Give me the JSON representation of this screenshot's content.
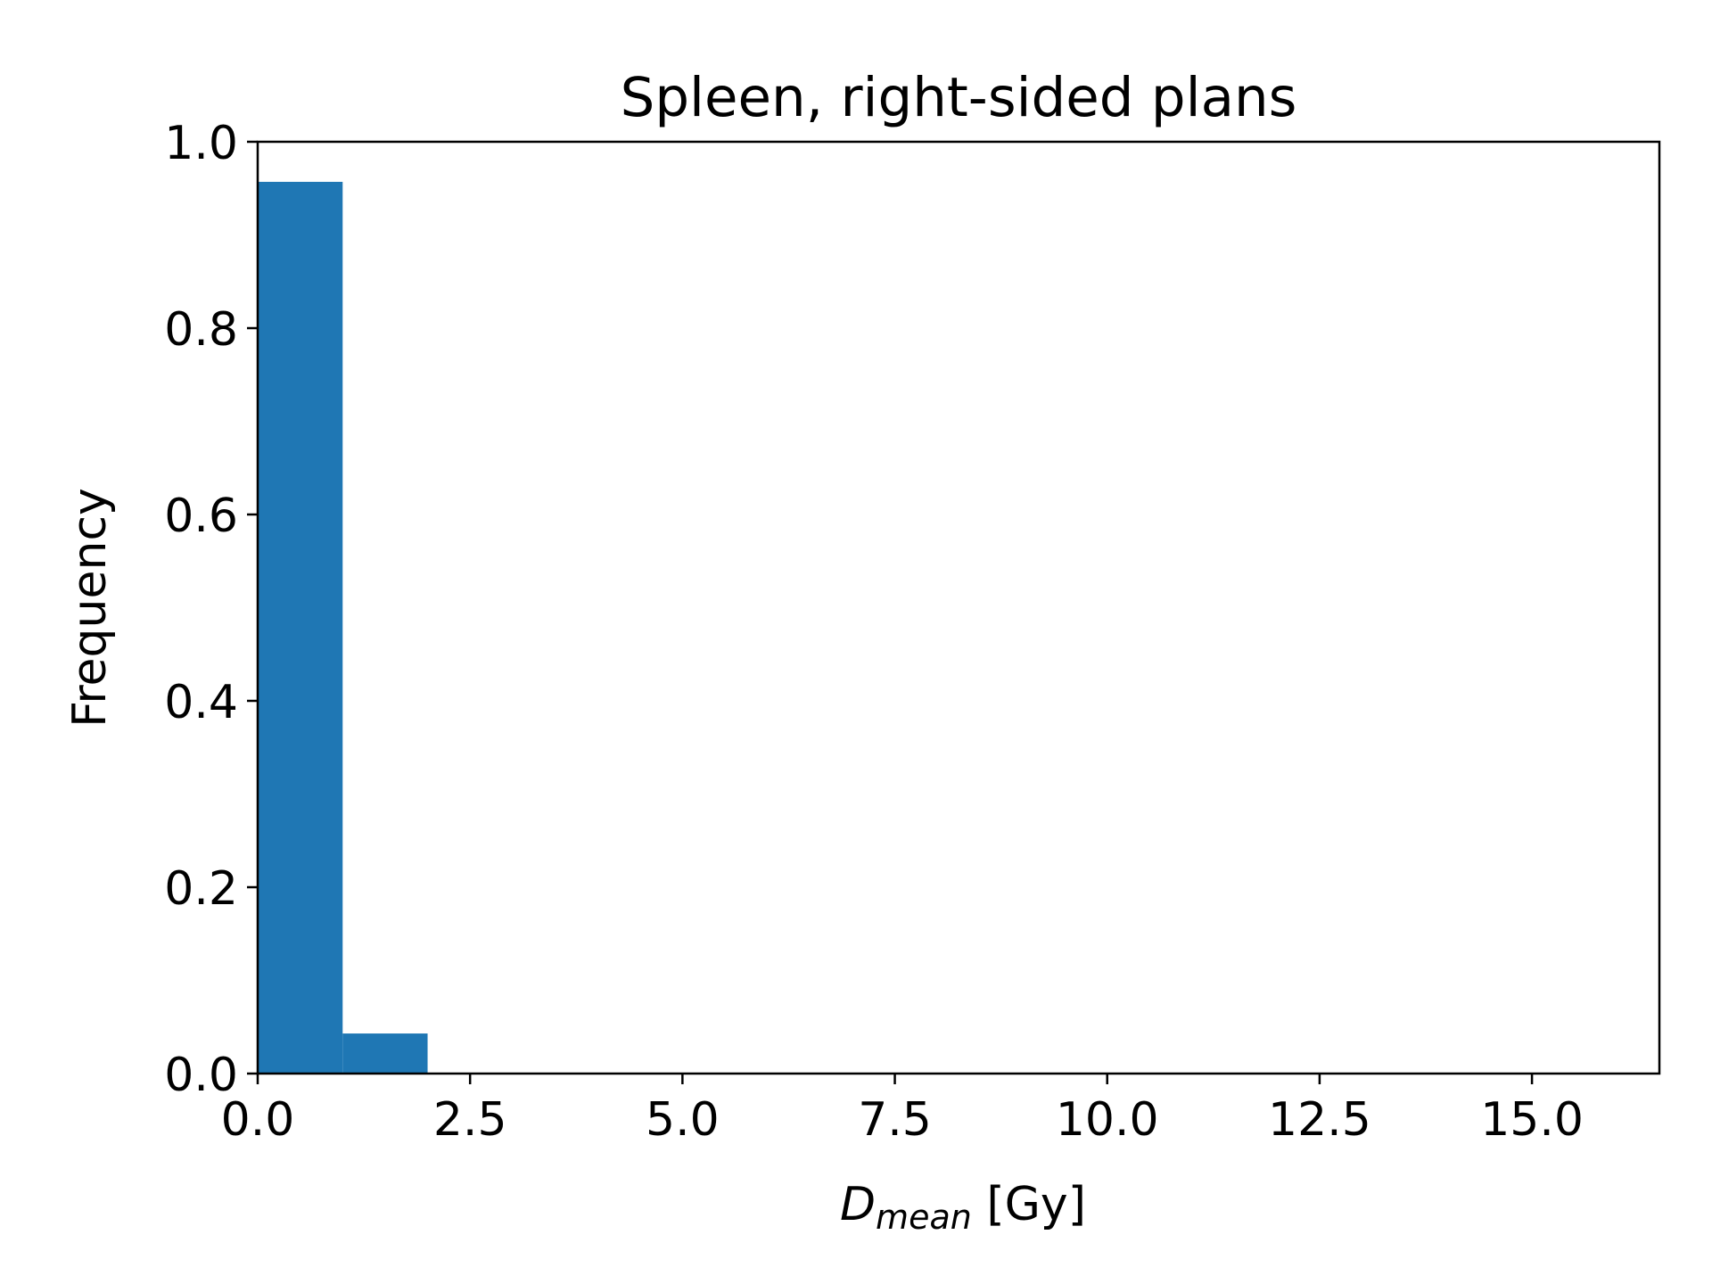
{
  "chart_data": {
    "type": "bar",
    "title": "Spleen, right-sided plans",
    "xlabel": {
      "main": "D",
      "sub": "mean",
      "unit": " [Gy]"
    },
    "ylabel": "Frequency",
    "xlim": [
      0,
      16.5
    ],
    "ylim": [
      0,
      1.0
    ],
    "xticks": [
      0,
      2.5,
      5,
      7.5,
      10,
      12.5,
      15
    ],
    "xtick_labels": [
      "0.0",
      "2.5",
      "5.0",
      "7.5",
      "10.0",
      "12.5",
      "15.0"
    ],
    "yticks": [
      0,
      0.2,
      0.4,
      0.6,
      0.8,
      1.0
    ],
    "ytick_labels": [
      "0.0",
      "0.2",
      "0.4",
      "0.6",
      "0.8",
      "1.0"
    ],
    "bins": [
      {
        "x0": 0,
        "x1": 1,
        "value": 0.957
      },
      {
        "x0": 1,
        "x1": 2,
        "value": 0.043
      }
    ],
    "bar_color": "#1f77b4",
    "grid": false
  }
}
